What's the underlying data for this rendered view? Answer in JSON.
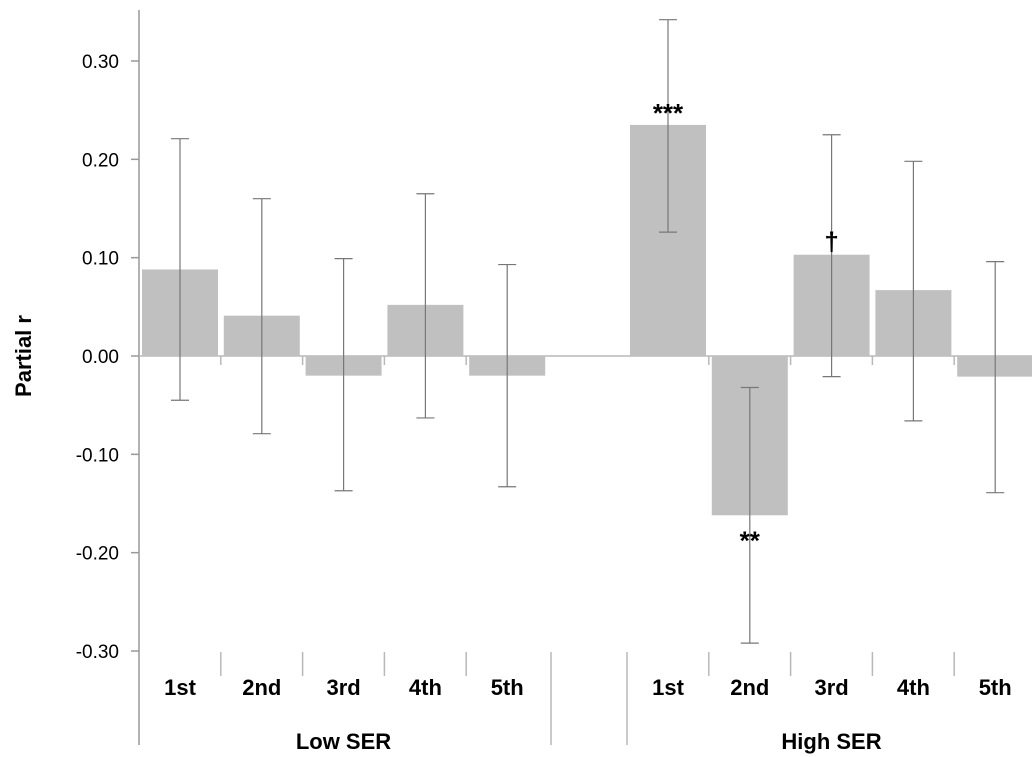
{
  "chart_data": {
    "type": "bar",
    "title": "",
    "ylabel": "Partial r",
    "ylim": [
      -0.3,
      0.3
    ],
    "yticks": [
      "0.30",
      "0.20",
      "0.10",
      "0.00",
      "-0.10",
      "-0.20",
      "-0.30"
    ],
    "ytick_values": [
      0.3,
      0.2,
      0.1,
      0.0,
      -0.1,
      -0.2,
      -0.3
    ],
    "bar_color": "#c0c0c0",
    "groups": [
      {
        "name": "Low SER",
        "categories": [
          "1st",
          "2nd",
          "3rd",
          "4th",
          "5th"
        ],
        "values": [
          0.088,
          0.041,
          -0.02,
          0.052,
          -0.02
        ],
        "error_low": [
          -0.045,
          -0.079,
          -0.137,
          -0.063,
          -0.133
        ],
        "error_high": [
          0.221,
          0.16,
          0.099,
          0.165,
          0.093
        ],
        "significance": [
          "",
          "",
          "",
          "",
          ""
        ]
      },
      {
        "name": "High SER",
        "categories": [
          "1st",
          "2nd",
          "3rd",
          "4th",
          "5th"
        ],
        "values": [
          0.235,
          -0.162,
          0.103,
          0.067,
          -0.021
        ],
        "error_low": [
          0.126,
          -0.292,
          -0.021,
          -0.066,
          -0.139
        ],
        "error_high": [
          0.342,
          -0.032,
          0.225,
          0.198,
          0.096
        ],
        "significance": [
          "***",
          "**",
          "†",
          "",
          ""
        ]
      }
    ]
  }
}
